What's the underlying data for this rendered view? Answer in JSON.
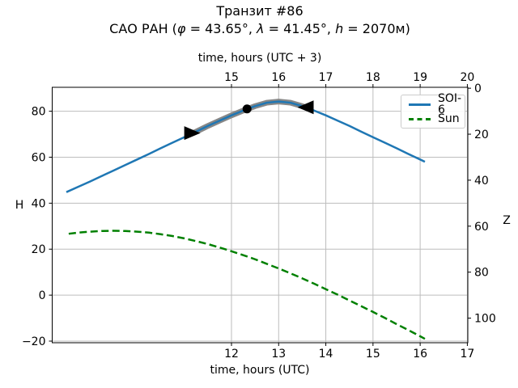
{
  "title": "Транзит #86",
  "subtitle": {
    "part1": "САО РАН (",
    "phi": "φ",
    "part2": " = 43.65°, ",
    "lambda": "λ",
    "part3": " = 41.45°, ",
    "h": "h",
    "part4": " = 2070м)"
  },
  "axes": {
    "top": {
      "label": "time, hours (UTC + 3)",
      "ticks": [
        {
          "label": "15",
          "v": 12
        },
        {
          "label": "16",
          "v": 13
        },
        {
          "label": "17",
          "v": 14
        },
        {
          "label": "18",
          "v": 15
        },
        {
          "label": "19",
          "v": 16
        },
        {
          "label": "20",
          "v": 17
        }
      ]
    },
    "bottom": {
      "label": "time, hours (UTC)",
      "ticks": [
        {
          "label": "12",
          "v": 12
        },
        {
          "label": "13",
          "v": 13
        },
        {
          "label": "14",
          "v": 14
        },
        {
          "label": "15",
          "v": 15
        },
        {
          "label": "16",
          "v": 16
        },
        {
          "label": "17",
          "v": 17
        }
      ]
    },
    "left": {
      "label": "H",
      "ticks": [
        {
          "label": "80",
          "v": 80
        },
        {
          "label": "60",
          "v": 60
        },
        {
          "label": "40",
          "v": 40
        },
        {
          "label": "20",
          "v": 20
        },
        {
          "label": "0",
          "v": 0
        },
        {
          "label": "−20",
          "v": -20
        }
      ]
    },
    "right": {
      "label": "Z",
      "ticks": [
        {
          "label": "0",
          "v": 90
        },
        {
          "label": "20",
          "v": 70
        },
        {
          "label": "40",
          "v": 50
        },
        {
          "label": "60",
          "v": 30
        },
        {
          "label": "80",
          "v": 10
        },
        {
          "label": "100",
          "v": -10
        }
      ]
    }
  },
  "legend": {
    "items": [
      {
        "label": "SOI-6",
        "color": "#1f77b4",
        "style": "solid"
      },
      {
        "label": "Sun",
        "color": "#008000",
        "style": "dashed"
      }
    ]
  },
  "chart_data": {
    "type": "line",
    "title": "Транзит #86",
    "subtitle_plain": "САО РАН (φ = 43.65°, λ = 41.45°, h = 2070м)",
    "xlabel_bottom": "time, hours (UTC)",
    "xlabel_top": "time, hours (UTC + 3)",
    "ylabel_left": "H",
    "ylabel_right": "Z",
    "grid": true,
    "legend_position": "upper right",
    "xlim": [
      8.2,
      17.01
    ],
    "ylim": [
      -20.7,
      90.4
    ],
    "grid_color": "#bdbdbd",
    "series": [
      {
        "name": "SOI-6",
        "color": "#1f77b4",
        "style": "solid",
        "width": 2.5,
        "x": [
          8.5,
          8.75,
          9,
          9.25,
          9.5,
          9.75,
          10,
          10.25,
          10.5,
          10.75,
          11,
          11.25,
          11.5,
          11.75,
          12,
          12.25,
          12.5,
          12.75,
          13,
          13.25,
          13.5,
          13.75,
          14,
          14.25,
          14.5,
          14.75,
          15,
          15.25,
          15.5,
          15.75,
          16,
          16.1
        ],
        "y": [
          44.8,
          47.1,
          49.4,
          51.8,
          54.2,
          56.6,
          59,
          61.4,
          63.9,
          66.3,
          68.7,
          71.1,
          73.6,
          75.9,
          78.2,
          80.3,
          82.2,
          83.7,
          84.2,
          83.7,
          82.2,
          80.3,
          78.2,
          75.9,
          73.6,
          71.1,
          68.7,
          66.3,
          63.9,
          61.4,
          59,
          58
        ]
      },
      {
        "name": "Sun",
        "color": "#008000",
        "style": "dashed",
        "width": 2.5,
        "x": [
          8.55,
          8.75,
          9,
          9.25,
          9.5,
          9.75,
          10,
          10.25,
          10.5,
          10.75,
          11,
          11.25,
          11.5,
          11.75,
          12,
          12.25,
          12.5,
          12.75,
          13,
          13.25,
          13.5,
          13.75,
          14,
          14.25,
          14.5,
          14.75,
          15,
          15.25,
          15.5,
          15.75,
          16,
          16.1
        ],
        "y": [
          26.7,
          27.2,
          27.6,
          27.9,
          28,
          27.9,
          27.6,
          27.2,
          26.5,
          25.7,
          24.7,
          23.5,
          22.2,
          20.7,
          19.1,
          17.4,
          15.6,
          13.6,
          11.6,
          9.5,
          7.3,
          5,
          2.6,
          0.2,
          -2.3,
          -4.8,
          -7.3,
          -9.9,
          -12.6,
          -15.2,
          -17.9,
          -19
        ]
      }
    ],
    "highlight_band": {
      "series": "SOI-6",
      "from_x": 11.17,
      "to_x": 13.57,
      "color": "#878787",
      "width": 7
    },
    "markers": [
      {
        "shape": "triangle-right",
        "x": 11.17,
        "y": 70.5,
        "color": "#000000"
      },
      {
        "shape": "circle",
        "x": 12.33,
        "y": 81.0,
        "color": "#000000"
      },
      {
        "shape": "triangle-left",
        "x": 13.57,
        "y": 81.7,
        "color": "#000000"
      }
    ]
  }
}
